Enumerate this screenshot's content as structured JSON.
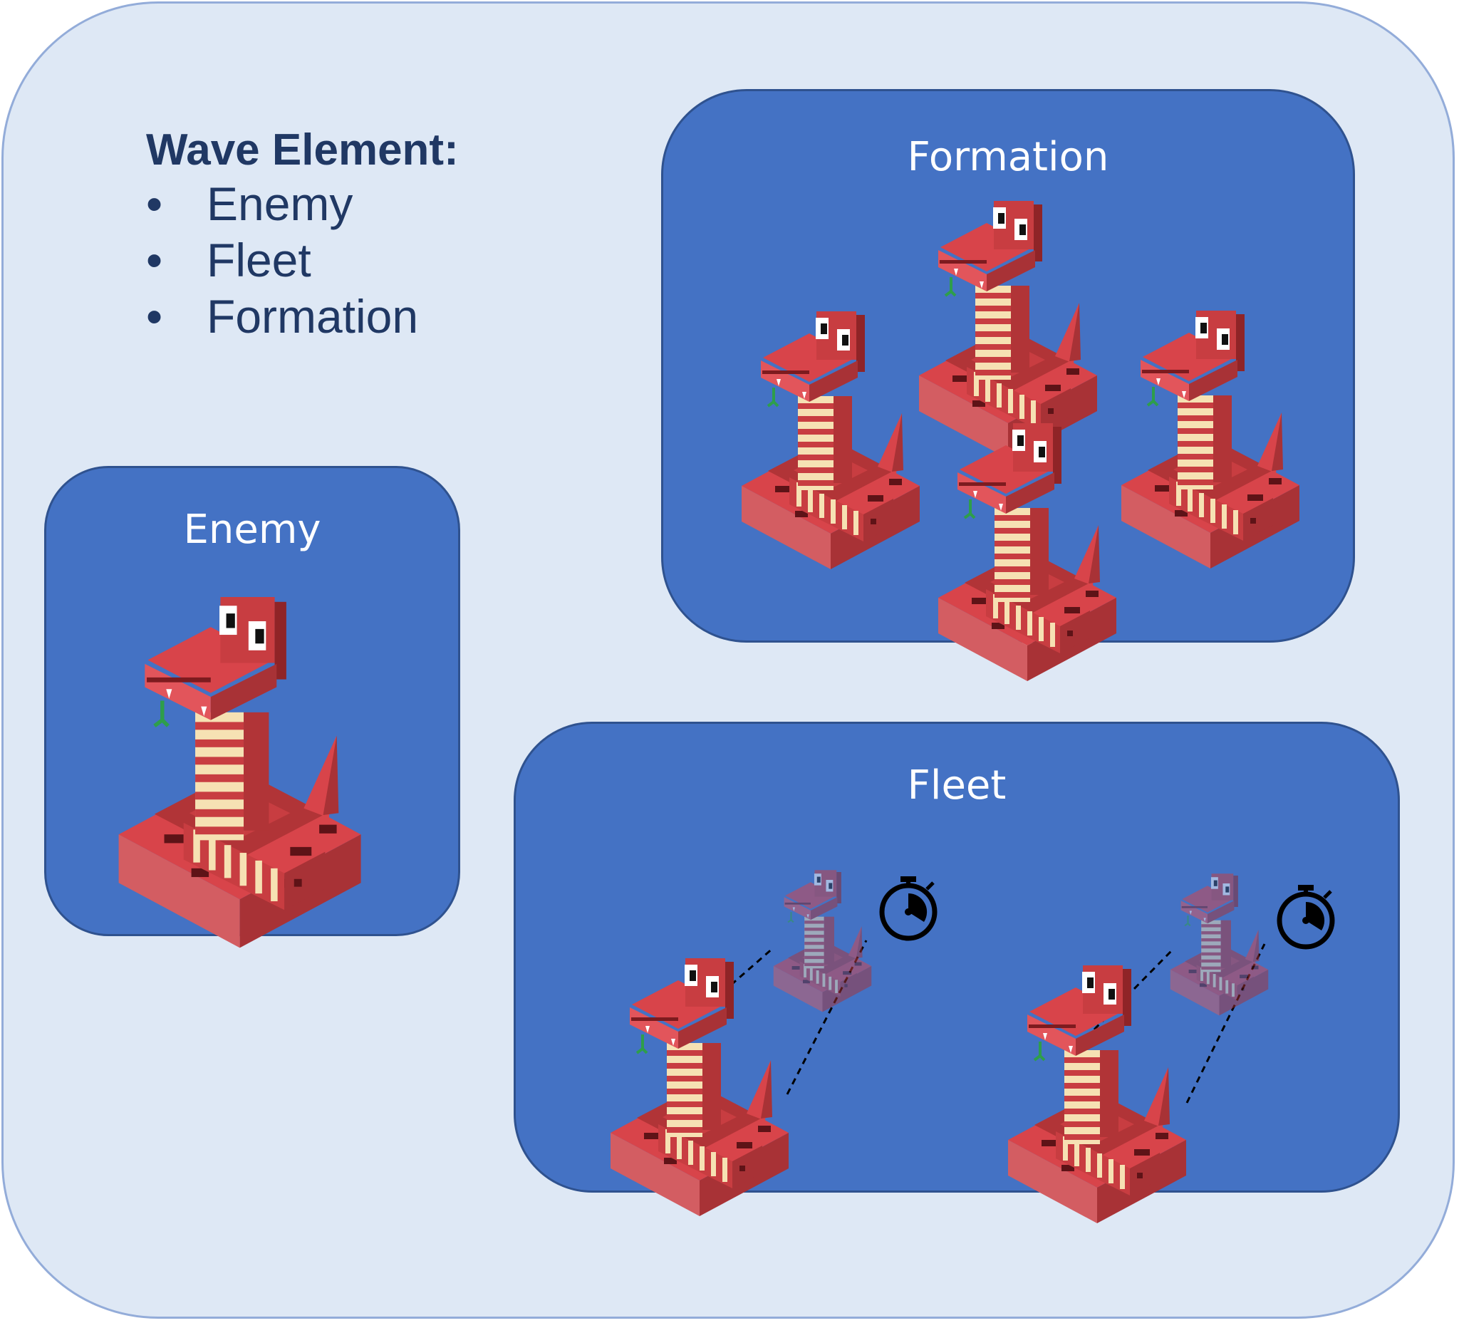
{
  "list": {
    "title": "Wave Element:",
    "bullet": "•",
    "items": [
      "Enemy",
      "Fleet",
      "Formation"
    ]
  },
  "panels": {
    "formation": {
      "title": "Formation",
      "snake_count": 4
    },
    "enemy": {
      "title": "Enemy",
      "snake_count": 1
    },
    "fleet": {
      "title": "Fleet",
      "group_count": 2
    }
  },
  "colors": {
    "background": "#dee8f5",
    "outer_border": "#93acd9",
    "panel_fill": "#4472c4",
    "panel_border": "#2f528f",
    "text_dark": "#203864",
    "snake_red": "#d13d3f",
    "snake_dark": "#a92f32",
    "snake_stripe": "#f6e1b3"
  },
  "icons": [
    "snake-enemy-icon",
    "stopwatch-icon",
    "dashed-projection-lines"
  ]
}
